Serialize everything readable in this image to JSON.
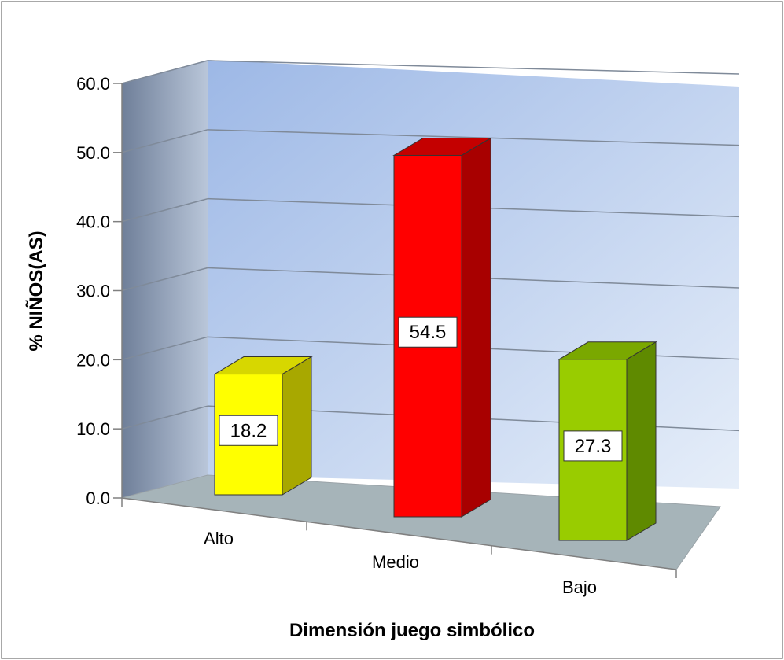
{
  "chart_data": {
    "type": "bar",
    "title": "",
    "xlabel": "Dimensión juego simbólico",
    "ylabel": "% NIÑOS(AS)",
    "categories": [
      "Alto",
      "Medio",
      "Bajo"
    ],
    "values": [
      18.2,
      54.5,
      27.3
    ],
    "data_labels": [
      "18.2",
      "54.5",
      "27.3"
    ],
    "yticks": [
      "0.0",
      "10.0",
      "20.0",
      "30.0",
      "40.0",
      "50.0",
      "60.0"
    ],
    "ylim": [
      0,
      60
    ],
    "grid": true,
    "legend": "none",
    "style": "3d-column",
    "colors": [
      "#ffff00",
      "#ff0000",
      "#99cc00"
    ],
    "side_colors": [
      "#a8a800",
      "#a80000",
      "#5f8a00"
    ],
    "top_colors": [
      "#d7d700",
      "#c40000",
      "#7aa800"
    ]
  }
}
